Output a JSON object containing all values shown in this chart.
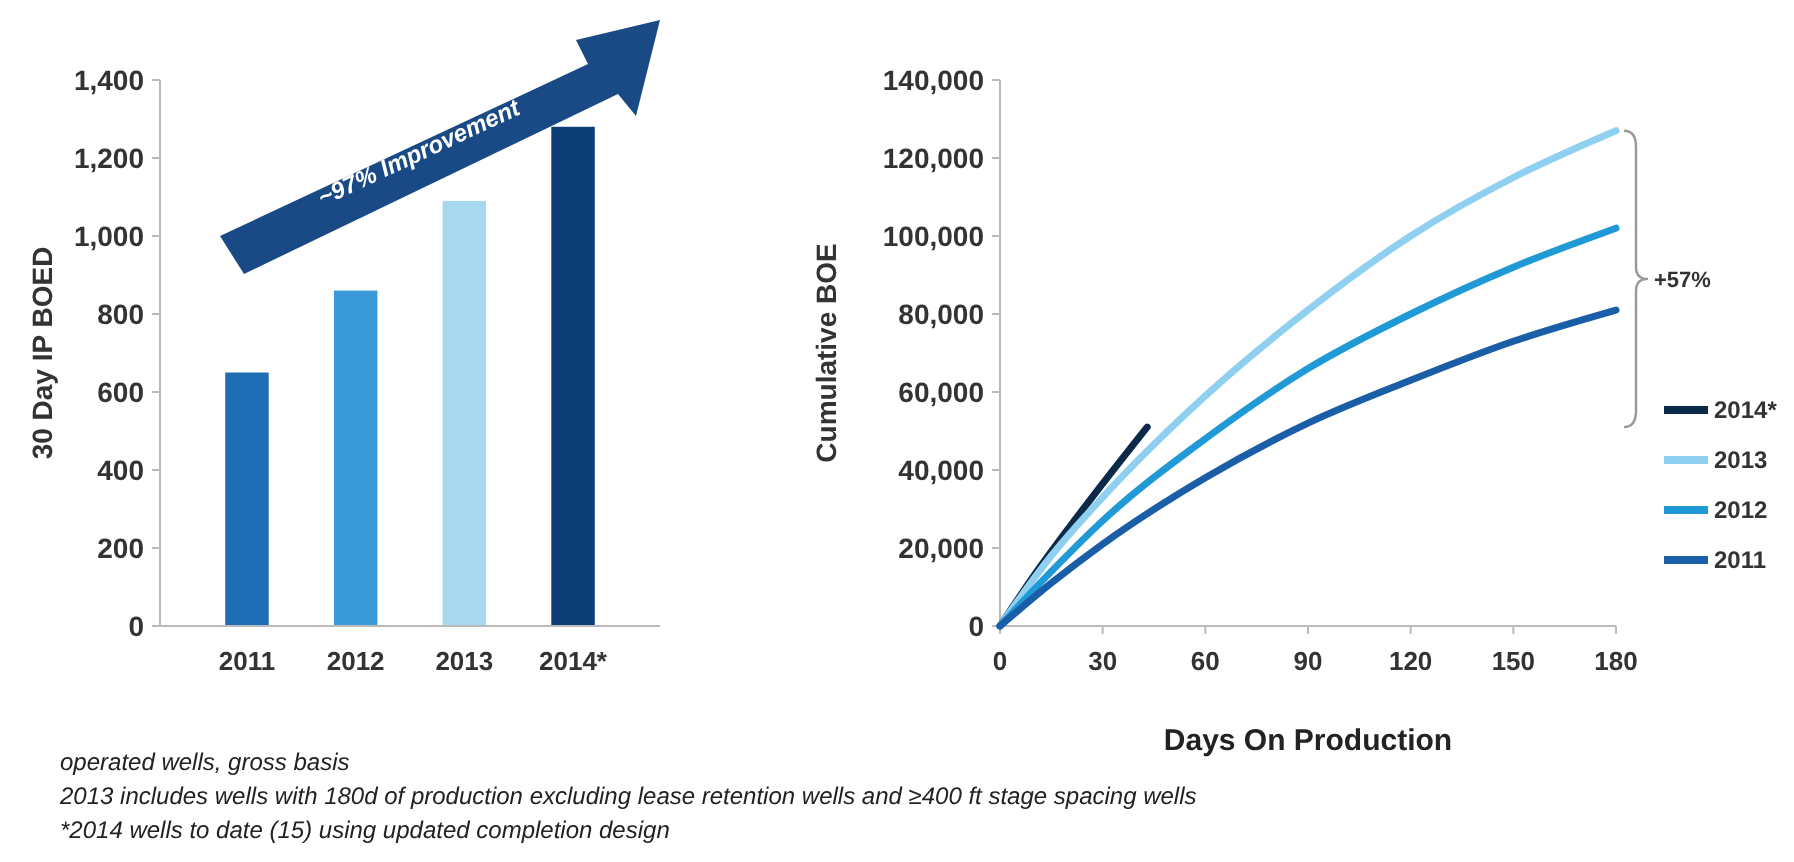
{
  "chart_data": [
    {
      "type": "bar",
      "ylabel": "30 Day IP BOED",
      "categories": [
        "2011",
        "2012",
        "2013",
        "2014*"
      ],
      "values": [
        650,
        860,
        1090,
        1280
      ],
      "colors": [
        "#1f6db5",
        "#3a9ad9",
        "#a8d8f0",
        "#0d3d75"
      ],
      "ylim": [
        0,
        1400
      ],
      "yticks": [
        {
          "value": 0,
          "label": "0"
        },
        {
          "value": 200,
          "label": "200"
        },
        {
          "value": 400,
          "label": "400"
        },
        {
          "value": 600,
          "label": "600"
        },
        {
          "value": 800,
          "label": "800"
        },
        {
          "value": 1000,
          "label": "1,000"
        },
        {
          "value": 1200,
          "label": "1,200"
        },
        {
          "value": 1400,
          "label": "1,400"
        }
      ],
      "grid": false,
      "annotations": [
        "~97% Improvement",
        "operated wells, gross basis",
        "2013 includes wells with 180d of production excluding lease retention wells and  ≥400 ft stage spacing wells",
        "*2014 wells to date (15) using updated completion design"
      ]
    },
    {
      "type": "line",
      "xlabel": "Days On Production",
      "ylabel": "Cumulative BOE",
      "xlim": [
        0,
        180
      ],
      "xticks": [
        0,
        30,
        60,
        90,
        120,
        150,
        180
      ],
      "ylim": [
        0,
        140000
      ],
      "yticks": [
        {
          "value": 0,
          "label": "0"
        },
        {
          "value": 20000,
          "label": "20,000"
        },
        {
          "value": 40000,
          "label": "40,000"
        },
        {
          "value": 60000,
          "label": "60,000"
        },
        {
          "value": 80000,
          "label": "80,000"
        },
        {
          "value": 100000,
          "label": "100,000"
        },
        {
          "value": 120000,
          "label": "120,000"
        },
        {
          "value": 140000,
          "label": "140,000"
        }
      ],
      "grid": false,
      "legend": "right",
      "marker": "none",
      "line_style": "solid",
      "annotations": [
        "+57%"
      ],
      "series": [
        {
          "name": "2014*",
          "color": "#0b2a4a",
          "x": [
            0,
            10,
            20,
            30,
            43
          ],
          "values": [
            0,
            13000,
            25000,
            36500,
            51000
          ]
        },
        {
          "name": "2013",
          "color": "#8fd0f0",
          "x": [
            0,
            15,
            30,
            60,
            90,
            120,
            150,
            180
          ],
          "values": [
            0,
            18000,
            33000,
            59000,
            81000,
            100000,
            115000,
            127000
          ]
        },
        {
          "name": "2012",
          "color": "#1f9ad6",
          "x": [
            0,
            15,
            30,
            60,
            90,
            120,
            150,
            180
          ],
          "values": [
            0,
            14000,
            27000,
            48000,
            66000,
            80000,
            92000,
            102000
          ]
        },
        {
          "name": "2011",
          "color": "#1a5ea8",
          "x": [
            0,
            15,
            30,
            60,
            90,
            120,
            150,
            180
          ],
          "values": [
            0,
            11000,
            21000,
            38000,
            52000,
            63000,
            73000,
            81000
          ]
        }
      ]
    }
  ]
}
